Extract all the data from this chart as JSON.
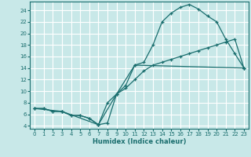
{
  "xlabel": "Humidex (Indice chaleur)",
  "bg_color": "#c8e8e8",
  "grid_color": "#ffffff",
  "line_color": "#1a6e6e",
  "xlim": [
    -0.5,
    23.5
  ],
  "ylim": [
    3.5,
    25.5
  ],
  "xticks": [
    0,
    1,
    2,
    3,
    4,
    5,
    6,
    7,
    8,
    9,
    10,
    11,
    12,
    13,
    14,
    15,
    16,
    17,
    18,
    19,
    20,
    21,
    22,
    23
  ],
  "yticks": [
    4,
    6,
    8,
    10,
    12,
    14,
    16,
    18,
    20,
    22,
    24
  ],
  "line1_x": [
    0,
    1,
    2,
    3,
    4,
    5,
    6,
    7,
    8,
    9,
    10,
    11,
    12,
    13,
    14,
    15,
    16,
    17,
    18,
    19,
    20,
    21,
    22,
    23
  ],
  "line1_y": [
    7.0,
    7.0,
    6.5,
    6.5,
    5.8,
    5.8,
    5.3,
    4.2,
    4.5,
    9.5,
    11.0,
    14.5,
    15.0,
    18.0,
    22.0,
    23.5,
    24.5,
    25.0,
    24.2,
    23.0,
    22.0,
    19.0,
    16.5,
    14.0
  ],
  "line2_x": [
    0,
    1,
    2,
    3,
    4,
    5,
    6,
    7,
    8,
    9,
    10,
    11,
    12,
    13,
    14,
    15,
    16,
    17,
    18,
    19,
    20,
    21,
    22,
    23
  ],
  "line2_y": [
    7.0,
    7.0,
    6.5,
    6.5,
    5.8,
    5.8,
    5.3,
    4.2,
    8.0,
    9.5,
    10.5,
    12.0,
    13.5,
    14.5,
    15.0,
    15.5,
    16.0,
    16.5,
    17.0,
    17.5,
    18.0,
    18.5,
    19.0,
    14.0
  ],
  "line3_x": [
    0,
    3,
    7,
    9,
    11,
    23
  ],
  "line3_y": [
    7.0,
    6.5,
    4.2,
    9.5,
    14.5,
    14.0
  ]
}
